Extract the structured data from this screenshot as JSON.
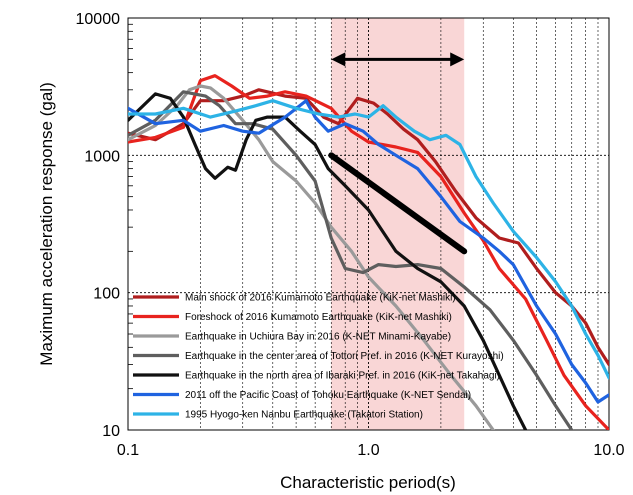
{
  "chart_data": {
    "type": "line",
    "xlabel": "Characteristic period(s)",
    "ylabel": "Maximum acceleration response (gal)",
    "xscale": "log",
    "yscale": "log",
    "xlim": [
      0.1,
      10.0
    ],
    "ylim": [
      10,
      10000
    ],
    "x_ticks": [
      "0.1",
      "1.0",
      "10.0"
    ],
    "y_ticks": [
      "10",
      "100",
      "1000",
      "10000"
    ],
    "grid": true,
    "legend_position": "bottom-left",
    "highlight_band": {
      "x": [
        0.7,
        2.5
      ],
      "color": "#f9d6d6"
    },
    "double_arrow": {
      "x": [
        0.7,
        2.5
      ],
      "y": 5000
    },
    "reference_line": {
      "points": [
        [
          0.7,
          1000
        ],
        [
          2.5,
          200
        ]
      ],
      "color": "#000000"
    },
    "series": [
      {
        "name": "Main shock of 2016 Kumamoto Earthquake (KiK-net Mashiki)",
        "color": "#b01e1e",
        "points": [
          [
            0.1,
            1450
          ],
          [
            0.13,
            1300
          ],
          [
            0.17,
            1700
          ],
          [
            0.2,
            2500
          ],
          [
            0.25,
            2500
          ],
          [
            0.3,
            2700
          ],
          [
            0.35,
            3000
          ],
          [
            0.45,
            2700
          ],
          [
            0.55,
            2600
          ],
          [
            0.65,
            1900
          ],
          [
            0.75,
            1700
          ],
          [
            0.9,
            2600
          ],
          [
            1.05,
            2400
          ],
          [
            1.2,
            2000
          ],
          [
            1.4,
            1550
          ],
          [
            1.6,
            1300
          ],
          [
            1.9,
            900
          ],
          [
            2.3,
            550
          ],
          [
            2.8,
            350
          ],
          [
            3.5,
            250
          ],
          [
            4.2,
            230
          ],
          [
            5.0,
            150
          ],
          [
            6.0,
            100
          ],
          [
            7.0,
            80
          ],
          [
            8.0,
            60
          ],
          [
            9.0,
            40
          ],
          [
            10.0,
            30
          ]
        ]
      },
      {
        "name": "Foreshock of 2016 Kumamoto Earthquake (KiK-net Mashiki)",
        "color": "#e8231e",
        "points": [
          [
            0.1,
            1250
          ],
          [
            0.13,
            1350
          ],
          [
            0.17,
            1600
          ],
          [
            0.2,
            3500
          ],
          [
            0.23,
            3800
          ],
          [
            0.27,
            3200
          ],
          [
            0.32,
            2600
          ],
          [
            0.38,
            2700
          ],
          [
            0.45,
            2900
          ],
          [
            0.55,
            2700
          ],
          [
            0.7,
            2200
          ],
          [
            0.85,
            1500
          ],
          [
            1.0,
            1250
          ],
          [
            1.3,
            1150
          ],
          [
            1.6,
            1050
          ],
          [
            2.0,
            700
          ],
          [
            2.5,
            380
          ],
          [
            3.0,
            240
          ],
          [
            3.5,
            150
          ],
          [
            4.5,
            90
          ],
          [
            5.5,
            45
          ],
          [
            6.5,
            25
          ],
          [
            8.0,
            15
          ],
          [
            10.0,
            10
          ]
        ]
      },
      {
        "name": "Earthquake in Uchiura Bay in 2016 (K-NET Minami-Kayabe)",
        "color": "#9a9a9a",
        "points": [
          [
            0.1,
            1300
          ],
          [
            0.13,
            1650
          ],
          [
            0.16,
            2300
          ],
          [
            0.18,
            3000
          ],
          [
            0.2,
            3200
          ],
          [
            0.22,
            3100
          ],
          [
            0.25,
            2600
          ],
          [
            0.3,
            1800
          ],
          [
            0.35,
            1300
          ],
          [
            0.4,
            900
          ],
          [
            0.5,
            650
          ],
          [
            0.6,
            450
          ],
          [
            0.7,
            300
          ],
          [
            0.85,
            200
          ],
          [
            1.0,
            130
          ],
          [
            1.3,
            80
          ],
          [
            1.7,
            45
          ],
          [
            2.2,
            25
          ],
          [
            2.8,
            15
          ],
          [
            3.3,
            10
          ]
        ]
      },
      {
        "name": "Earthquake in the center area of Tottori Pref. in 2016 (K-NET Kurayoshi)",
        "color": "#5e5e5e",
        "points": [
          [
            0.1,
            1400
          ],
          [
            0.13,
            1800
          ],
          [
            0.17,
            2900
          ],
          [
            0.21,
            2700
          ],
          [
            0.24,
            2300
          ],
          [
            0.28,
            1700
          ],
          [
            0.33,
            1700
          ],
          [
            0.4,
            1550
          ],
          [
            0.5,
            1000
          ],
          [
            0.6,
            650
          ],
          [
            0.7,
            250
          ],
          [
            0.8,
            150
          ],
          [
            0.95,
            140
          ],
          [
            1.1,
            160
          ],
          [
            1.3,
            155
          ],
          [
            1.6,
            160
          ],
          [
            2.0,
            150
          ],
          [
            2.5,
            110
          ],
          [
            3.2,
            75
          ],
          [
            4.0,
            45
          ],
          [
            5.0,
            25
          ],
          [
            6.0,
            15
          ],
          [
            7.0,
            10
          ]
        ]
      },
      {
        "name": "Earthquake in the north area of Ibaraki Pref. in 2016 (KiK-net Takahagi)",
        "color": "#111111",
        "points": [
          [
            0.1,
            1800
          ],
          [
            0.13,
            2800
          ],
          [
            0.15,
            2600
          ],
          [
            0.17,
            1900
          ],
          [
            0.19,
            1200
          ],
          [
            0.21,
            800
          ],
          [
            0.23,
            680
          ],
          [
            0.26,
            820
          ],
          [
            0.28,
            780
          ],
          [
            0.31,
            1300
          ],
          [
            0.34,
            1800
          ],
          [
            0.38,
            1900
          ],
          [
            0.45,
            1900
          ],
          [
            0.52,
            1500
          ],
          [
            0.6,
            1200
          ],
          [
            0.68,
            800
          ],
          [
            0.8,
            600
          ],
          [
            1.0,
            400
          ],
          [
            1.3,
            200
          ],
          [
            1.6,
            150
          ],
          [
            2.0,
            120
          ],
          [
            2.5,
            80
          ],
          [
            3.0,
            45
          ],
          [
            3.5,
            25
          ],
          [
            4.0,
            15
          ],
          [
            4.5,
            10
          ]
        ]
      },
      {
        "name": "2011 off the Pacific Coast of Tohoku Earthquake (K-NET Sendai)",
        "color": "#1f63e0",
        "points": [
          [
            0.1,
            2200
          ],
          [
            0.13,
            1700
          ],
          [
            0.17,
            1800
          ],
          [
            0.2,
            1500
          ],
          [
            0.25,
            1650
          ],
          [
            0.3,
            1500
          ],
          [
            0.35,
            1450
          ],
          [
            0.45,
            1900
          ],
          [
            0.55,
            2500
          ],
          [
            0.6,
            1900
          ],
          [
            0.68,
            1500
          ],
          [
            0.8,
            1700
          ],
          [
            0.95,
            1500
          ],
          [
            1.1,
            1200
          ],
          [
            1.3,
            1000
          ],
          [
            1.6,
            800
          ],
          [
            2.0,
            500
          ],
          [
            2.4,
            330
          ],
          [
            3.0,
            250
          ],
          [
            3.5,
            200
          ],
          [
            4.0,
            160
          ],
          [
            5.0,
            80
          ],
          [
            6.0,
            50
          ],
          [
            7.0,
            30
          ],
          [
            8.0,
            22
          ],
          [
            9.0,
            16
          ],
          [
            10.0,
            18
          ]
        ]
      },
      {
        "name": "1995 Hyogo-ken Nanbu Earthquake (Takatori Station)",
        "color": "#2db3e6",
        "points": [
          [
            0.1,
            2000
          ],
          [
            0.13,
            2000
          ],
          [
            0.17,
            2200
          ],
          [
            0.22,
            1900
          ],
          [
            0.28,
            2100
          ],
          [
            0.34,
            2300
          ],
          [
            0.4,
            2500
          ],
          [
            0.5,
            2200
          ],
          [
            0.62,
            2000
          ],
          [
            0.75,
            1900
          ],
          [
            0.88,
            2000
          ],
          [
            1.0,
            1900
          ],
          [
            1.15,
            2300
          ],
          [
            1.3,
            1900
          ],
          [
            1.55,
            1500
          ],
          [
            1.8,
            1300
          ],
          [
            2.1,
            1400
          ],
          [
            2.4,
            1200
          ],
          [
            2.8,
            700
          ],
          [
            3.3,
            450
          ],
          [
            4.0,
            280
          ],
          [
            5.0,
            180
          ],
          [
            6.0,
            120
          ],
          [
            7.0,
            80
          ],
          [
            8.0,
            50
          ],
          [
            9.0,
            35
          ],
          [
            10.0,
            24
          ]
        ]
      }
    ]
  }
}
